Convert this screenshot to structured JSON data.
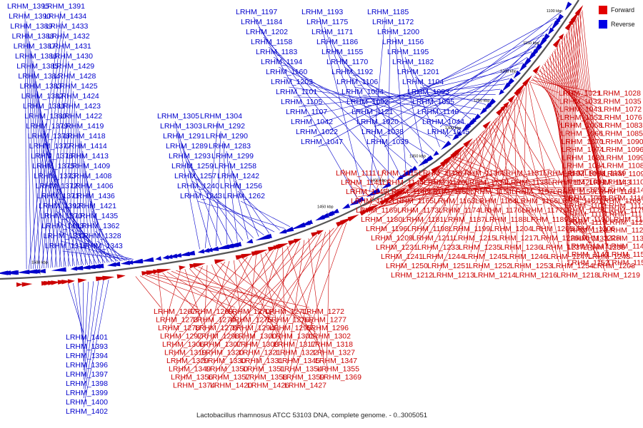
{
  "caption": "Lactobacillus rhamnosus ATCC 53103 DNA, complete genome. - 0..3005051",
  "legend": [
    {
      "label": "Forward",
      "color": "#e30000"
    },
    {
      "label": "Reverse",
      "color": "#0000e6"
    }
  ],
  "strand_colors": {
    "forward": "#cc0000",
    "reverse": "#0000cc",
    "backbone": "#555555"
  },
  "tick_marks": [
    "1100 kbp",
    "1150 kbp",
    "1200 kbp",
    "1250 kbp",
    "1300 kbp",
    "1350 kbp",
    "1400 kbp",
    "1450 kbp",
    "1500 kbp"
  ],
  "gene_labels": {
    "reverse_left": [
      "LRHM_1395",
      "LRHM_1391",
      "LRHM_1390",
      "LRHM_1434",
      "LRHM_1389",
      "LRHM_1433",
      "LRHM_1388",
      "LRHM_1432",
      "LRHM_1387",
      "LRHM_1431",
      "LRHM_1386",
      "LRHM_1430",
      "LRHM_1385",
      "LRHM_1429",
      "LRHM_1384",
      "LRHM_1428",
      "LRHM_1383",
      "LRHM_1425",
      "LRHM_1382",
      "LRHM_1424",
      "LRHM_1381",
      "LRHM_1423",
      "LRHM_1380",
      "LRHM_1422",
      "LRHM_1379",
      "LRHM_1419",
      "LRHM_1378",
      "LRHM_1418",
      "LRHM_1377",
      "LRHM_1414",
      "LRHM_1376",
      "LRHM_1413",
      "LRHM_1375",
      "LRHM_1409",
      "LRHM_1373",
      "LRHM_1408",
      "LRHM_1372",
      "LRHM_1406",
      "LRHM_1371",
      "LRHM_1436",
      "LRHM_1392",
      "LRHM_1421",
      "LRHM_1370",
      "LRHM_1435",
      "LRHM_1403",
      "LRHM_1362",
      "LRHM_1337",
      "LRHM_1328",
      "LRHM_1316",
      "LRHM_1343"
    ],
    "reverse_mid": [
      "LRHM_1305",
      "LRHM_1304",
      "LRHM_1303",
      "LRHM_1292",
      "LRHM_1291",
      "LRHM_1290",
      "LRHM_1289",
      "LRHM_1283",
      "LRHM_1293",
      "LRHM_1299",
      "LRHM_1259",
      "LRHM_1258",
      "LRHM_1257",
      "LRHM_1242",
      "LRHM_1240",
      "LRHM_1256",
      "LRHM_1243",
      "LRHM_1262"
    ],
    "reverse_top": [
      "LRHM_1197",
      "LRHM_1193",
      "LRHM_1185",
      "LRHM_1184",
      "LRHM_1175",
      "LRHM_1172",
      "LRHM_1202",
      "LRHM_1171",
      "LRHM_1200",
      "LRHM_1158",
      "LRHM_1186",
      "LRHM_1156",
      "LRHM_1183",
      "LRHM_1155",
      "LRHM_1195",
      "LRHM_1194",
      "LRHM_1170",
      "LRHM_1182",
      "LRHM_1160",
      "LRHM_1192",
      "LRHM_1201",
      "LRHM_1203",
      "LRHM_1106",
      "LRHM_1104",
      "LRHM_1101",
      "LRHM_1094",
      "LRHM_1093",
      "LRHM_1105",
      "LRHM_1092",
      "LRHM_1095",
      "LRHM_1107",
      "LRHM_1121",
      "LRHM_1140",
      "LRHM_1042",
      "LRHM_1020",
      "LRHM_1044",
      "LRHM_1022",
      "LRHM_1038",
      "LRHM_1045",
      "LRHM_1047",
      "LRHM_1039"
    ],
    "reverse_bottom": [
      "LRHM_1401",
      "LRHM_1393",
      "LRHM_1394",
      "LRHM_1396",
      "LRHM_1397",
      "LRHM_1398",
      "LRHM_1399",
      "LRHM_1400",
      "LRHM_1402"
    ],
    "forward_right": [
      "LRHM_1021",
      "LRHM_1028",
      "LRHM_1032",
      "LRHM_1035",
      "LRHM_1043",
      "LRHM_1072",
      "LRHM_1052",
      "LRHM_1076",
      "LRHM_1058",
      "LRHM_1083",
      "LRHM_1066",
      "LRHM_1085",
      "LRHM_1070",
      "LRHM_1090",
      "LRHM_1074",
      "LRHM_1096",
      "LRHM_1080",
      "LRHM_1099",
      "LRHM_1084",
      "LRHM_1108",
      "LRHM_1086",
      "LRHM_1109",
      "LRHM_1091",
      "LRHM_1110",
      "LRHM_1097",
      "LRHM_1114",
      "LRHM_1098",
      "LRHM_1116",
      "LRHM_1102",
      "LRHM_1112",
      "LRHM_1113",
      "LRHM_1117",
      "LRHM_1119",
      "LRHM_1122",
      "LRHM_1123",
      "LRHM_1127",
      "LRHM_1133",
      "LRHM_1135",
      "LRHM_1147",
      "LRHM_1148",
      "LRHM_1149",
      "LRHM_1151",
      "LRHM_1152",
      "LRHM_1153"
    ],
    "forward_middle": [
      "LRHM_1111",
      "LRHM_1115",
      "LRHM_1118",
      "LRHM_1130",
      "LRHM_1131",
      "LRHM_1132",
      "LRHM_1139",
      "LRHM_1141",
      "LRHM_1144",
      "LRHM_1120",
      "LRHM_1134",
      "LRHM_1138",
      "LRHM_1142",
      "LRHM_1143",
      "LRHM_1145",
      "LRHM_1146",
      "LRHM_1150",
      "LRHM_1154",
      "LRHM_1157",
      "LRHM_1159",
      "LRHM_1161",
      "LRHM_1162",
      "LRHM_1165",
      "LRHM_1163",
      "LRHM_1164",
      "LRHM_1166",
      "LRHM_1167",
      "LRHM_1168",
      "LRHM_1169",
      "LRHM_1173",
      "LRHM_1174",
      "LRHM_1176",
      "LRHM_1177",
      "LRHM_1178",
      "LRHM_1179",
      "LRHM_1180",
      "LRHM_1181",
      "LRHM_1187",
      "LRHM_1188",
      "LRHM_1189",
      "LRHM_1190",
      "LRHM_1191",
      "LRHM_1196",
      "LRHM_1198",
      "LRHM_1199",
      "LRHM_1204",
      "LRHM_1205",
      "LRHM_1206",
      "LRHM_1207",
      "LRHM_1209",
      "LRHM_1211",
      "LRHM_1215",
      "LRHM_1217",
      "LRHM_1226",
      "LRHM_1228",
      "LRHM_1229",
      "LRHM_1231",
      "LRHM_1233",
      "LRHM_1235",
      "LRHM_1236",
      "LRHM_1237",
      "LRHM_1238",
      "LRHM_1239",
      "LRHM_1241",
      "LRHM_1244",
      "LRHM_1245",
      "LRHM_1246",
      "LRHM_1247",
      "LRHM_1248",
      "LRHM_1249",
      "LRHM_1250",
      "LRHM_1251",
      "LRHM_1252",
      "LRHM_1253",
      "LRHM_1254",
      "LRHM_1208",
      "LRHM_1210",
      "LRHM_1212",
      "LRHM_1213",
      "LRHM_1214",
      "LRHM_1216",
      "LRHM_1218",
      "LRHM_1219"
    ],
    "forward_bottom": [
      "LRHM_1267",
      "LRHM_1269",
      "LRHM_1270",
      "LRHM_1271",
      "LRHM_1272",
      "LRHM_1273",
      "LRHM_1274",
      "LRHM_1275",
      "LRHM_1276",
      "LRHM_1277",
      "LRHM_1278",
      "LRHM_1279",
      "LRHM_1294",
      "LRHM_1295",
      "LRHM_1296",
      "LRHM_1297",
      "LRHM_1298",
      "LRHM_1300",
      "LRHM_1301",
      "LRHM_1302",
      "LRHM_1306",
      "LRHM_1307",
      "LRHM_1308",
      "LRHM_1317",
      "LRHM_1318",
      "LRHM_1319",
      "LRHM_1320",
      "LRHM_1321",
      "LRHM_1322",
      "LRHM_1327",
      "LRHM_1329",
      "LRHM_1330",
      "LRHM_1331",
      "LRHM_1345",
      "LRHM_1347",
      "LRHM_1349",
      "LRHM_1350",
      "LRHM_1351",
      "LRHM_1354",
      "LRHM_1355",
      "LRHM_1356",
      "LRHM_1357",
      "LRHM_1358",
      "LRHM_1359",
      "LRHM_1369",
      "LRHM_1374",
      "LRHM_1420",
      "LRHM_1426",
      "LRHM_1427"
    ]
  }
}
